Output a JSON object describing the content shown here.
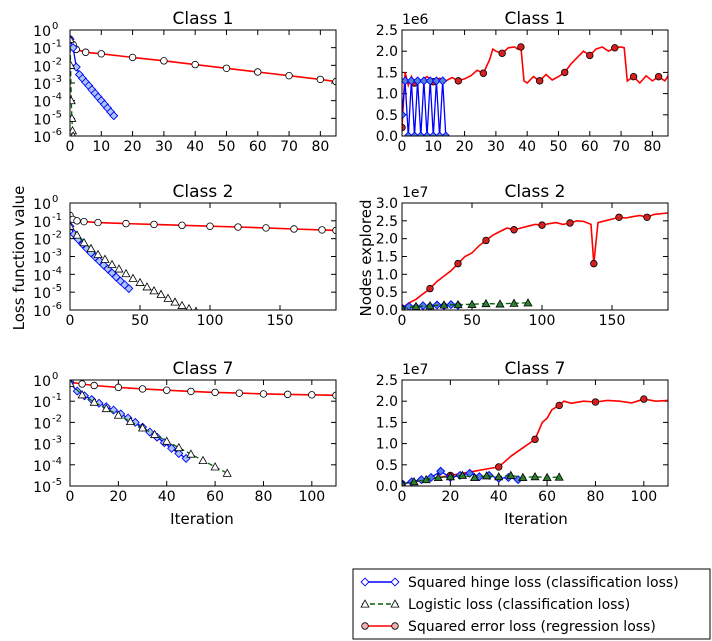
{
  "figure": {
    "ylabel_left": "Loss function value",
    "ylabel_right": "Nodes explored",
    "xlabel": "Iteration"
  },
  "legend": [
    {
      "name": "Squared hinge loss (classification loss)",
      "color": "#0000ff",
      "marker": "diamond",
      "marker_fill": "#4f7fd8",
      "dashed": false
    },
    {
      "name": "Logistic loss (classification loss)",
      "color": "#006400",
      "marker": "triangle",
      "marker_fill": "#2e7d32",
      "dashed": true
    },
    {
      "name": "Squared error loss (regression loss)",
      "color": "#ff0000",
      "marker": "circle",
      "marker_fill": "#d62020",
      "dashed": false
    }
  ],
  "chart_data": [
    {
      "type": "line",
      "title": "Class 1",
      "yscale": "log",
      "xlim": [
        0,
        85
      ],
      "ylim": [
        -6,
        0
      ],
      "xticks": [
        "0",
        "10",
        "20",
        "30",
        "40",
        "50",
        "60",
        "70",
        "80"
      ],
      "xtick_values": [
        0,
        10,
        20,
        30,
        40,
        50,
        60,
        70,
        80
      ],
      "ytick_exponents": [
        0,
        -1,
        -2,
        -3,
        -4,
        -5,
        -6
      ],
      "ytick_base": "10",
      "series": [
        {
          "name": "Squared error loss (regression loss)",
          "x": [
            0,
            1,
            2,
            5,
            10,
            20,
            30,
            40,
            50,
            60,
            70,
            80,
            85
          ],
          "y": [
            0.3,
            0.15,
            0.08,
            0.055,
            0.045,
            0.028,
            0.018,
            0.011,
            0.0068,
            0.0042,
            0.0026,
            0.0016,
            0.0012
          ]
        },
        {
          "name": "Squared hinge loss (classification loss)",
          "x": [
            0,
            1,
            2,
            3,
            4,
            5,
            6,
            7,
            8,
            9,
            10,
            11,
            12,
            13,
            14
          ],
          "y": [
            0.3,
            0.1,
            0.008,
            0.003,
            0.0018,
            0.0011,
            0.0007,
            0.00042,
            0.00026,
            0.00016,
            0.0001,
            6.2e-05,
            3.8e-05,
            2.3e-05,
            1.4e-05
          ]
        },
        {
          "name": "Logistic loss (classification loss)",
          "x": [
            0,
            0.2,
            0.4,
            0.6,
            0.8,
            1
          ],
          "y": [
            0.3,
            0.01,
            0.0001,
            1e-05,
            2e-06,
            1e-06
          ]
        }
      ]
    },
    {
      "type": "line",
      "title": "Class 1",
      "offset_label": "1e6",
      "xlim": [
        0,
        85
      ],
      "ylim": [
        0,
        2.5
      ],
      "xticks": [
        "0",
        "10",
        "20",
        "30",
        "40",
        "50",
        "60",
        "70",
        "80"
      ],
      "xtick_values": [
        0,
        10,
        20,
        30,
        40,
        50,
        60,
        70,
        80
      ],
      "yticks": [
        "0.0",
        "0.5",
        "1.0",
        "1.5",
        "2.0",
        "2.5"
      ],
      "ytick_values": [
        0,
        0.5,
        1,
        1.5,
        2,
        2.5
      ],
      "series": [
        {
          "name": "Squared error loss (regression loss)",
          "x": [
            0,
            1,
            2,
            3,
            4,
            5,
            6,
            8,
            10,
            12,
            14,
            16,
            18,
            20,
            22,
            24,
            26,
            28,
            29,
            30,
            32,
            34,
            36,
            37,
            38,
            39,
            40,
            42,
            44,
            46,
            48,
            50,
            52,
            54,
            56,
            58,
            60,
            62,
            64,
            66,
            68,
            70,
            71,
            72,
            74,
            76,
            78,
            80,
            82,
            84,
            85
          ],
          "y": [
            0.2,
            1.5,
            1.2,
            1.4,
            1.25,
            1.35,
            1.3,
            1.4,
            1.28,
            1.36,
            1.3,
            1.38,
            1.3,
            1.35,
            1.42,
            1.55,
            1.48,
            1.8,
            2.05,
            2.0,
            1.95,
            2.08,
            2.1,
            2.05,
            2.1,
            1.3,
            1.25,
            1.4,
            1.3,
            1.45,
            1.32,
            1.4,
            1.5,
            1.7,
            1.85,
            2.0,
            1.9,
            2.05,
            2.1,
            2.0,
            2.08,
            2.1,
            2.08,
            1.3,
            1.4,
            1.25,
            1.42,
            1.3,
            1.4,
            1.3,
            1.42
          ]
        },
        {
          "name": "Squared hinge loss (classification loss)",
          "x": [
            0,
            1,
            2,
            3,
            4,
            5,
            6,
            7,
            8,
            9,
            10,
            11,
            12,
            13,
            14
          ],
          "y": [
            0.5,
            1.3,
            0.0,
            1.3,
            0.0,
            1.3,
            0.0,
            1.3,
            0.0,
            1.3,
            0.0,
            1.3,
            0.0,
            1.3,
            0.0
          ]
        }
      ]
    },
    {
      "type": "line",
      "title": "Class 2",
      "yscale": "log",
      "xlim": [
        0,
        190
      ],
      "ylim": [
        -6,
        0
      ],
      "xticks": [
        "0",
        "50",
        "100",
        "150"
      ],
      "xtick_values": [
        0,
        50,
        100,
        150
      ],
      "ytick_exponents": [
        0,
        -1,
        -2,
        -3,
        -4,
        -5,
        -6
      ],
      "ytick_base": "10",
      "series": [
        {
          "name": "Squared error loss (regression loss)",
          "x": [
            0,
            2,
            5,
            10,
            20,
            40,
            60,
            80,
            100,
            120,
            140,
            160,
            180,
            190
          ],
          "y": [
            0.2,
            0.12,
            0.1,
            0.09,
            0.08,
            0.07,
            0.063,
            0.056,
            0.05,
            0.045,
            0.04,
            0.035,
            0.031,
            0.029
          ]
        },
        {
          "name": "Squared hinge loss (classification loss)",
          "x": [
            0,
            3,
            6,
            9,
            12,
            15,
            18,
            21,
            24,
            27,
            30,
            33,
            36,
            39,
            42
          ],
          "y": [
            0.05,
            0.018,
            0.009,
            0.005,
            0.0028,
            0.0016,
            0.00095,
            0.00056,
            0.00033,
            0.0002,
            0.00012,
            7e-05,
            4.2e-05,
            2.6e-05,
            1.6e-05
          ]
        },
        {
          "name": "Logistic loss (classification loss)",
          "x": [
            0,
            5,
            10,
            15,
            20,
            25,
            30,
            35,
            40,
            45,
            50,
            55,
            60,
            65,
            70,
            75,
            80,
            85,
            90
          ],
          "y": [
            0.05,
            0.016,
            0.006,
            0.0028,
            0.0013,
            0.0007,
            0.00036,
            0.0002,
            0.00011,
            6e-05,
            3.5e-05,
            2e-05,
            1.2e-05,
            7.5e-06,
            4.5e-06,
            2.8e-06,
            1.8e-06,
            1.2e-06,
            8.5e-07
          ]
        }
      ]
    },
    {
      "type": "line",
      "title": "Class 2",
      "offset_label": "1e7",
      "xlim": [
        0,
        190
      ],
      "ylim": [
        0,
        3.0
      ],
      "xticks": [
        "0",
        "50",
        "100",
        "150"
      ],
      "xtick_values": [
        0,
        50,
        100,
        150
      ],
      "yticks": [
        "0.0",
        "0.5",
        "1.0",
        "1.5",
        "2.0",
        "2.5",
        "3.0"
      ],
      "ytick_values": [
        0,
        0.5,
        1,
        1.5,
        2,
        2.5,
        3
      ],
      "series": [
        {
          "name": "Squared error loss (regression loss)",
          "x": [
            0,
            5,
            10,
            15,
            20,
            25,
            30,
            35,
            40,
            45,
            50,
            55,
            60,
            65,
            70,
            75,
            80,
            85,
            90,
            95,
            100,
            105,
            110,
            115,
            120,
            125,
            130,
            135,
            137,
            140,
            145,
            150,
            155,
            160,
            165,
            170,
            175,
            180,
            185,
            190
          ],
          "y": [
            0.05,
            0.2,
            0.3,
            0.45,
            0.6,
            0.8,
            0.95,
            1.1,
            1.3,
            1.5,
            1.6,
            1.8,
            1.95,
            2.1,
            2.2,
            2.3,
            2.25,
            2.3,
            2.35,
            2.4,
            2.38,
            2.42,
            2.45,
            2.4,
            2.44,
            2.5,
            2.48,
            2.4,
            1.3,
            2.45,
            2.5,
            2.55,
            2.6,
            2.58,
            2.62,
            2.65,
            2.6,
            2.68,
            2.7,
            2.72
          ]
        },
        {
          "name": "Squared hinge loss (classification loss)",
          "x": [
            0,
            5,
            10,
            15,
            20,
            25,
            30,
            35,
            40
          ],
          "y": [
            0.05,
            0.1,
            0.08,
            0.12,
            0.1,
            0.14,
            0.12,
            0.15,
            0.13
          ]
        },
        {
          "name": "Logistic loss (classification loss)",
          "x": [
            0,
            10,
            20,
            30,
            40,
            50,
            60,
            70,
            80,
            90
          ],
          "y": [
            0.05,
            0.1,
            0.12,
            0.14,
            0.15,
            0.16,
            0.18,
            0.17,
            0.19,
            0.2
          ]
        }
      ]
    },
    {
      "type": "line",
      "title": "Class 7",
      "yscale": "log",
      "xlim": [
        0,
        110
      ],
      "ylim": [
        -5,
        0
      ],
      "xticks": [
        "0",
        "20",
        "40",
        "60",
        "80",
        "100"
      ],
      "xtick_values": [
        0,
        20,
        40,
        60,
        80,
        100
      ],
      "ytick_exponents": [
        0,
        -1,
        -2,
        -3,
        -4,
        -5
      ],
      "ytick_base": "10",
      "series": [
        {
          "name": "Squared error loss (regression loss)",
          "x": [
            0,
            5,
            10,
            20,
            30,
            40,
            50,
            60,
            70,
            80,
            90,
            100,
            110
          ],
          "y": [
            0.8,
            0.65,
            0.55,
            0.45,
            0.38,
            0.33,
            0.29,
            0.26,
            0.24,
            0.22,
            0.21,
            0.2,
            0.19
          ]
        },
        {
          "name": "Squared hinge loss (classification loss)",
          "x": [
            0,
            3,
            6,
            9,
            12,
            15,
            18,
            21,
            24,
            27,
            30,
            33,
            36,
            39,
            42,
            45,
            48
          ],
          "y": [
            0.7,
            0.3,
            0.18,
            0.12,
            0.08,
            0.055,
            0.038,
            0.025,
            0.016,
            0.01,
            0.006,
            0.0035,
            0.002,
            0.0011,
            0.0006,
            0.00034,
            0.0002
          ]
        },
        {
          "name": "Logistic loss (classification loss)",
          "x": [
            0,
            5,
            10,
            15,
            20,
            25,
            30,
            35,
            40,
            45,
            50,
            55,
            60,
            65
          ],
          "y": [
            0.7,
            0.2,
            0.09,
            0.045,
            0.022,
            0.011,
            0.0055,
            0.0027,
            0.0013,
            0.00065,
            0.00032,
            0.00016,
            8e-05,
            4e-05
          ]
        }
      ]
    },
    {
      "type": "line",
      "title": "Class 7",
      "offset_label": "1e7",
      "xlim": [
        0,
        110
      ],
      "ylim": [
        0,
        2.5
      ],
      "xticks": [
        "0",
        "20",
        "40",
        "60",
        "80",
        "100"
      ],
      "xtick_values": [
        0,
        20,
        40,
        60,
        80,
        100
      ],
      "yticks": [
        "0.0",
        "0.5",
        "1.0",
        "1.5",
        "2.0",
        "2.5"
      ],
      "ytick_values": [
        0,
        0.5,
        1,
        1.5,
        2,
        2.5
      ],
      "series": [
        {
          "name": "Squared error loss (regression loss)",
          "x": [
            0,
            5,
            10,
            15,
            20,
            25,
            30,
            35,
            40,
            42,
            45,
            50,
            55,
            58,
            60,
            62,
            65,
            67,
            70,
            75,
            80,
            85,
            90,
            95,
            100,
            105,
            110
          ],
          "y": [
            0.05,
            0.1,
            0.15,
            0.2,
            0.25,
            0.3,
            0.35,
            0.4,
            0.45,
            0.55,
            0.7,
            0.9,
            1.1,
            1.5,
            1.6,
            1.8,
            1.9,
            2.0,
            1.95,
            2.0,
            1.98,
            2.02,
            2.0,
            1.96,
            2.05,
            2.0,
            2.02
          ]
        },
        {
          "name": "Squared hinge loss (classification loss)",
          "x": [
            0,
            4,
            8,
            12,
            16,
            20,
            24,
            28,
            32,
            36,
            40,
            44,
            48
          ],
          "y": [
            0.05,
            0.1,
            0.15,
            0.2,
            0.35,
            0.2,
            0.25,
            0.3,
            0.22,
            0.25,
            0.18,
            0.2,
            0.15
          ]
        },
        {
          "name": "Logistic loss (classification loss)",
          "x": [
            0,
            5,
            10,
            15,
            20,
            25,
            30,
            35,
            40,
            45,
            50,
            55,
            60,
            65
          ],
          "y": [
            0.05,
            0.1,
            0.15,
            0.2,
            0.22,
            0.25,
            0.2,
            0.24,
            0.22,
            0.25,
            0.2,
            0.22,
            0.2,
            0.21
          ]
        }
      ]
    }
  ]
}
